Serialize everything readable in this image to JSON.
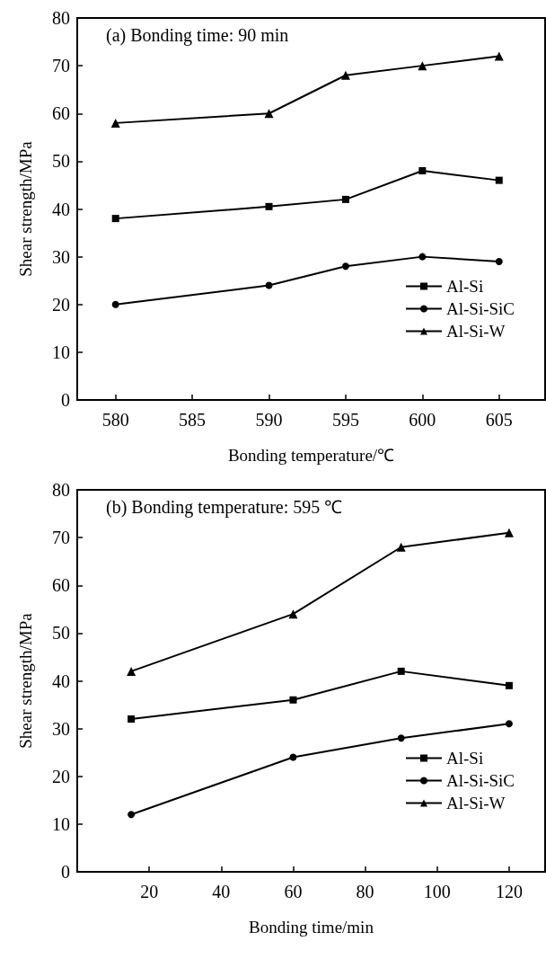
{
  "chart_data": [
    {
      "type": "line",
      "title": "(a) Bonding time: 90 min",
      "xlabel": "Bonding temperature/℃",
      "ylabel": "Shear strength/MPa",
      "x": [
        580,
        590,
        595,
        600,
        605
      ],
      "xlim": [
        577.5,
        608
      ],
      "xticks": [
        580,
        585,
        590,
        595,
        600,
        605
      ],
      "ylim": [
        0,
        80
      ],
      "yticks": [
        0,
        10,
        20,
        30,
        40,
        50,
        60,
        70,
        80
      ],
      "grid": false,
      "legend": "bottom right",
      "line_style": "solid",
      "series": [
        {
          "name": "Al-Si",
          "color": "#000000",
          "marker": "square",
          "values": [
            38,
            40.5,
            42,
            48,
            46
          ]
        },
        {
          "name": "Al-Si-SiC",
          "color": "#000000",
          "marker": "circle",
          "values": [
            20,
            24,
            28,
            30,
            29
          ]
        },
        {
          "name": "Al-Si-W",
          "color": "#000000",
          "marker": "triangle",
          "values": [
            58,
            60,
            68,
            70,
            72
          ]
        }
      ]
    },
    {
      "type": "line",
      "title": "(b) Bonding temperature: 595 ℃",
      "xlabel": "Bonding time/min",
      "ylabel": "Shear strength/MPa",
      "x": [
        15,
        60,
        90,
        120
      ],
      "xlim": [
        0,
        130
      ],
      "xticks": [
        20,
        40,
        60,
        80,
        100,
        120
      ],
      "ylim": [
        0,
        80
      ],
      "yticks": [
        0,
        10,
        20,
        30,
        40,
        50,
        60,
        70,
        80
      ],
      "grid": false,
      "legend": "bottom right",
      "line_style": "solid",
      "series": [
        {
          "name": "Al-Si",
          "color": "#000000",
          "marker": "square",
          "values": [
            32,
            36,
            42,
            39
          ]
        },
        {
          "name": "Al-Si-SiC",
          "color": "#000000",
          "marker": "circle",
          "values": [
            12,
            24,
            28,
            31
          ]
        },
        {
          "name": "Al-Si-W",
          "color": "#000000",
          "marker": "triangle",
          "values": [
            42,
            54,
            68,
            71
          ]
        }
      ]
    }
  ]
}
